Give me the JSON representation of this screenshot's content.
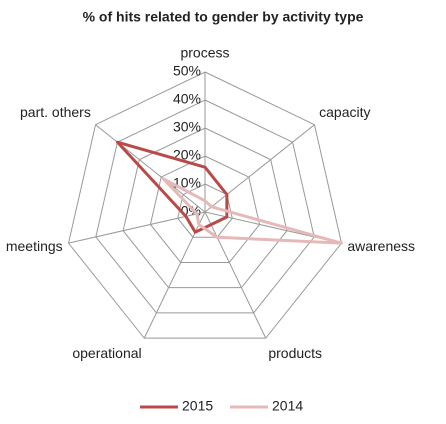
{
  "chart_data": {
    "type": "radar",
    "title": "% of hits related to gender by activity type",
    "categories": [
      "process",
      "capacity",
      "awareness",
      "products",
      "operational",
      "meetings",
      "part. others"
    ],
    "series": [
      {
        "name": "2015",
        "color": "#b94a48",
        "values": [
          16,
          10,
          8,
          5,
          8,
          7,
          40
        ]
      },
      {
        "name": "2014",
        "color": "#e6b9b8",
        "values": [
          4,
          3,
          50,
          10,
          5,
          3,
          19
        ]
      }
    ],
    "ylim": [
      0,
      50
    ],
    "yticks": [
      {
        "value": 0,
        "label": "0%"
      },
      {
        "value": 10,
        "label": "10%"
      },
      {
        "value": 20,
        "label": "20%"
      },
      {
        "value": 30,
        "label": "30%"
      },
      {
        "value": 40,
        "label": "40%"
      },
      {
        "value": 50,
        "label": "50%"
      }
    ],
    "grid": true,
    "legend": "bottom"
  }
}
